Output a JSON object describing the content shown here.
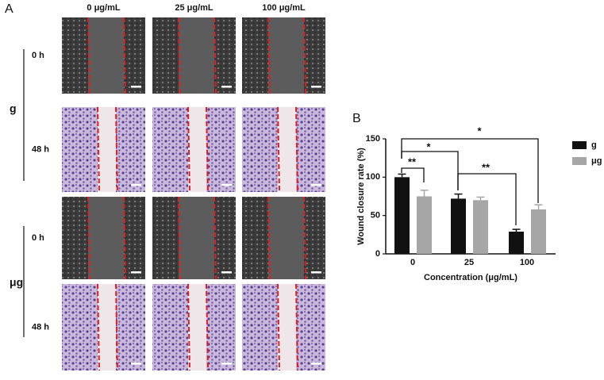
{
  "panel_a": {
    "label": "A",
    "columns": [
      "0 μg/mL",
      "25 μg/mL",
      "100 μg/mL"
    ],
    "groups": [
      {
        "name": "g",
        "rows": [
          "0 h",
          "48 h"
        ]
      },
      {
        "name": "μg",
        "rows": [
          "0 h",
          "48 h"
        ]
      }
    ]
  },
  "chart_data": {
    "type": "bar",
    "panel_label": "B",
    "y_label": "Wound closure rate (%)",
    "x_label": "Concentration (μg/mL)",
    "categories": [
      "0",
      "25",
      "100"
    ],
    "series": [
      {
        "name": "g",
        "color": "#111111",
        "values": [
          100,
          72,
          29
        ],
        "errors": [
          4,
          6,
          3
        ]
      },
      {
        "name": "μg",
        "color": "#a6a6a6",
        "values": [
          75,
          70,
          58
        ],
        "errors": [
          8,
          4,
          6
        ]
      }
    ],
    "ylim": [
      0,
      150
    ],
    "yticks": [
      0,
      50,
      100,
      150
    ],
    "annotations": [
      "**",
      "*",
      "**",
      "*"
    ]
  }
}
